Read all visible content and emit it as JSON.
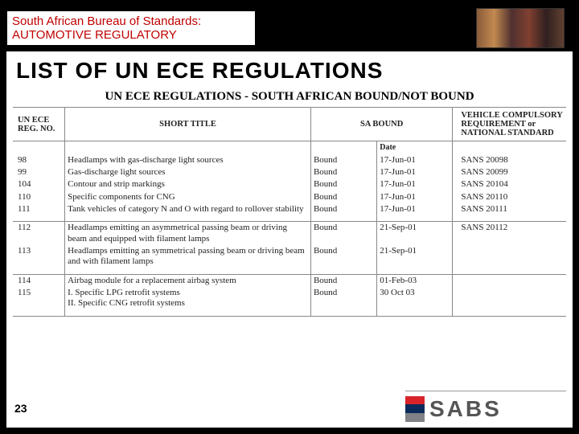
{
  "header": {
    "line1": "South African Bureau of Standards:",
    "line2": "AUTOMOTIVE REGULATORY"
  },
  "main_title": "LIST OF UN ECE REGULATIONS",
  "sub_title": "UN ECE REGULATIONS - SOUTH AFRICAN BOUND/NOT BOUND",
  "columns": {
    "c1": "UN ECE REG. NO.",
    "c2": "SHORT TITLE",
    "c3": "SA BOUND",
    "c4": "VEHICLE COMPULSORY REQUIREMENT or NATIONAL STANDARD"
  },
  "date_label": "Date",
  "rows_block1": [
    {
      "reg": "98",
      "title": "Headlamps with gas-discharge light sources",
      "bound": "Bound",
      "date": "17-Jun-01",
      "std": "SANS 20098"
    },
    {
      "reg": "99",
      "title": "Gas-discharge light sources",
      "bound": "Bound",
      "date": "17-Jun-01",
      "std": "SANS 20099"
    },
    {
      "reg": "104",
      "title": "Contour and strip markings",
      "bound": "Bound",
      "date": "17-Jun-01",
      "std": "SANS 20104"
    },
    {
      "reg": "110",
      "title": "Specific components for CNG",
      "bound": "Bound",
      "date": "17-Jun-01",
      "std": "SANS 20110"
    },
    {
      "reg": "111",
      "title": "Tank vehicles of category N and O with regard to rollover stability",
      "bound": "Bound",
      "date": "17-Jun-01",
      "std": "SANS 20111"
    }
  ],
  "rows_block2": [
    {
      "reg": "112",
      "title": "Headlamps emitting an asymmetrical passing beam or driving beam and equipped with filament lamps",
      "bound": "Bound",
      "date": "21-Sep-01",
      "std": "SANS 20112"
    },
    {
      "reg": "113",
      "title": "Headlamps emitting an symmetrical passing beam or driving beam and with filament lamps",
      "bound": "Bound",
      "date": "21-Sep-01",
      "std": ""
    }
  ],
  "rows_block3": [
    {
      "reg": "114",
      "title": "Airbag module for a replacement airbag system",
      "bound": "Bound",
      "date": "01-Feb-03",
      "std": ""
    },
    {
      "reg": "115",
      "title": "I. Specific LPG retrofit systems\nII. Specific CNG retrofit systems",
      "bound": "Bound",
      "date": "30 Oct 03",
      "std": ""
    }
  ],
  "page_number": "23",
  "logo_text": "SABS",
  "styling": {
    "background_color": "#000000",
    "content_bg": "#ffffff",
    "accent_red": "#c00000",
    "title_font": "Arial",
    "table_font": "Georgia",
    "title_fontsize": 28,
    "sub_title_fontsize": 15,
    "table_fontsize": 11,
    "border_color": "#888888",
    "logo_colors": [
      "#d8232a",
      "#0a2a5c",
      "#808285"
    ],
    "slide_width": 720,
    "slide_height": 540
  }
}
